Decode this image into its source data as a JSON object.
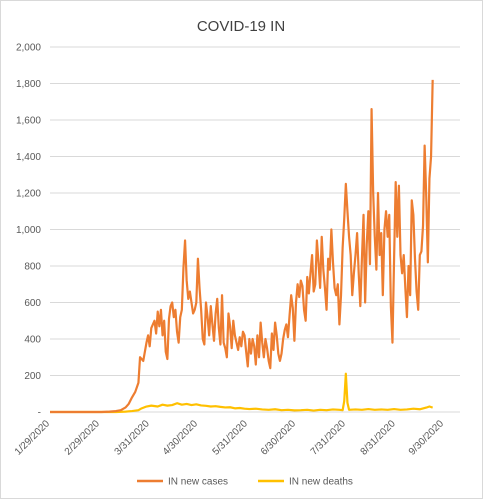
{
  "chart_data": {
    "type": "line",
    "title": "COVID-19 IN",
    "xlabel": "",
    "ylabel": "",
    "ylim": [
      0,
      2000
    ],
    "y_ticks": [
      0,
      200,
      400,
      600,
      800,
      1000,
      1200,
      1400,
      1600,
      1800,
      2000
    ],
    "y_tick_labels": [
      "-",
      "200",
      "400",
      "600",
      "800",
      "1,000",
      "1,200",
      "1,400",
      "1,600",
      "1,800",
      "2,000"
    ],
    "x_range": [
      "2020-01-29",
      "2020-10-10"
    ],
    "x_tick_labels": [
      "1/29/2020",
      "2/29/2020",
      "3/31/2020",
      "4/30/2020",
      "5/31/2020",
      "6/30/2020",
      "7/31/2020",
      "8/31/2020",
      "9/30/2020"
    ],
    "x_tick_dates": [
      "2020-01-29",
      "2020-02-29",
      "2020-03-31",
      "2020-04-30",
      "2020-05-31",
      "2020-06-30",
      "2020-07-31",
      "2020-08-31",
      "2020-09-30"
    ],
    "grid": "horizontal",
    "legend_position": "bottom",
    "series": [
      {
        "name": "IN new cases",
        "color": "#ED7D31",
        "points": [
          [
            "2020-01-29",
            0
          ],
          [
            "2020-02-15",
            0
          ],
          [
            "2020-03-01",
            0
          ],
          [
            "2020-03-06",
            2
          ],
          [
            "2020-03-10",
            5
          ],
          [
            "2020-03-13",
            10
          ],
          [
            "2020-03-16",
            25
          ],
          [
            "2020-03-18",
            45
          ],
          [
            "2020-03-20",
            80
          ],
          [
            "2020-03-22",
            110
          ],
          [
            "2020-03-24",
            160
          ],
          [
            "2020-03-25",
            300
          ],
          [
            "2020-03-27",
            280
          ],
          [
            "2020-03-29",
            380
          ],
          [
            "2020-03-30",
            420
          ],
          [
            "2020-03-31",
            360
          ],
          [
            "2020-04-01",
            460
          ],
          [
            "2020-04-03",
            500
          ],
          [
            "2020-04-04",
            430
          ],
          [
            "2020-04-05",
            550
          ],
          [
            "2020-04-06",
            470
          ],
          [
            "2020-04-07",
            560
          ],
          [
            "2020-04-08",
            420
          ],
          [
            "2020-04-09",
            500
          ],
          [
            "2020-04-10",
            330
          ],
          [
            "2020-04-11",
            290
          ],
          [
            "2020-04-12",
            510
          ],
          [
            "2020-04-13",
            580
          ],
          [
            "2020-04-14",
            600
          ],
          [
            "2020-04-15",
            520
          ],
          [
            "2020-04-16",
            560
          ],
          [
            "2020-04-17",
            440
          ],
          [
            "2020-04-18",
            380
          ],
          [
            "2020-04-19",
            520
          ],
          [
            "2020-04-20",
            560
          ],
          [
            "2020-04-21",
            790
          ],
          [
            "2020-04-22",
            940
          ],
          [
            "2020-04-23",
            720
          ],
          [
            "2020-04-24",
            620
          ],
          [
            "2020-04-25",
            660
          ],
          [
            "2020-04-26",
            600
          ],
          [
            "2020-04-27",
            540
          ],
          [
            "2020-04-28",
            560
          ],
          [
            "2020-04-29",
            600
          ],
          [
            "2020-04-30",
            840
          ],
          [
            "2020-05-01",
            680
          ],
          [
            "2020-05-02",
            560
          ],
          [
            "2020-05-03",
            400
          ],
          [
            "2020-05-04",
            370
          ],
          [
            "2020-05-05",
            600
          ],
          [
            "2020-05-06",
            520
          ],
          [
            "2020-05-07",
            420
          ],
          [
            "2020-05-08",
            580
          ],
          [
            "2020-05-09",
            480
          ],
          [
            "2020-05-10",
            390
          ],
          [
            "2020-05-11",
            540
          ],
          [
            "2020-05-12",
            620
          ],
          [
            "2020-05-13",
            460
          ],
          [
            "2020-05-14",
            370
          ],
          [
            "2020-05-15",
            640
          ],
          [
            "2020-05-16",
            380
          ],
          [
            "2020-05-17",
            350
          ],
          [
            "2020-05-18",
            300
          ],
          [
            "2020-05-19",
            540
          ],
          [
            "2020-05-20",
            470
          ],
          [
            "2020-05-21",
            350
          ],
          [
            "2020-05-22",
            500
          ],
          [
            "2020-05-23",
            420
          ],
          [
            "2020-05-24",
            380
          ],
          [
            "2020-05-25",
            340
          ],
          [
            "2020-05-26",
            410
          ],
          [
            "2020-05-27",
            360
          ],
          [
            "2020-05-28",
            440
          ],
          [
            "2020-05-29",
            420
          ],
          [
            "2020-05-30",
            330
          ],
          [
            "2020-05-31",
            250
          ],
          [
            "2020-06-01",
            400
          ],
          [
            "2020-06-02",
            320
          ],
          [
            "2020-06-03",
            400
          ],
          [
            "2020-06-04",
            360
          ],
          [
            "2020-06-05",
            260
          ],
          [
            "2020-06-06",
            420
          ],
          [
            "2020-06-07",
            300
          ],
          [
            "2020-06-08",
            490
          ],
          [
            "2020-06-09",
            380
          ],
          [
            "2020-06-10",
            300
          ],
          [
            "2020-06-11",
            400
          ],
          [
            "2020-06-12",
            350
          ],
          [
            "2020-06-13",
            280
          ],
          [
            "2020-06-14",
            240
          ],
          [
            "2020-06-15",
            430
          ],
          [
            "2020-06-16",
            340
          ],
          [
            "2020-06-17",
            490
          ],
          [
            "2020-06-18",
            420
          ],
          [
            "2020-06-19",
            320
          ],
          [
            "2020-06-20",
            280
          ],
          [
            "2020-06-21",
            320
          ],
          [
            "2020-06-22",
            400
          ],
          [
            "2020-06-23",
            450
          ],
          [
            "2020-06-24",
            480
          ],
          [
            "2020-06-25",
            410
          ],
          [
            "2020-06-26",
            530
          ],
          [
            "2020-06-27",
            640
          ],
          [
            "2020-06-28",
            570
          ],
          [
            "2020-06-29",
            390
          ],
          [
            "2020-06-30",
            600
          ],
          [
            "2020-07-01",
            700
          ],
          [
            "2020-07-02",
            630
          ],
          [
            "2020-07-03",
            720
          ],
          [
            "2020-07-04",
            690
          ],
          [
            "2020-07-05",
            560
          ],
          [
            "2020-07-06",
            500
          ],
          [
            "2020-07-07",
            740
          ],
          [
            "2020-07-08",
            650
          ],
          [
            "2020-07-09",
            760
          ],
          [
            "2020-07-10",
            860
          ],
          [
            "2020-07-11",
            660
          ],
          [
            "2020-07-12",
            700
          ],
          [
            "2020-07-13",
            940
          ],
          [
            "2020-07-14",
            820
          ],
          [
            "2020-07-15",
            680
          ],
          [
            "2020-07-16",
            960
          ],
          [
            "2020-07-17",
            780
          ],
          [
            "2020-07-18",
            680
          ],
          [
            "2020-07-19",
            560
          ],
          [
            "2020-07-20",
            840
          ],
          [
            "2020-07-21",
            780
          ],
          [
            "2020-07-22",
            1000
          ],
          [
            "2020-07-23",
            820
          ],
          [
            "2020-07-24",
            680
          ],
          [
            "2020-07-25",
            640
          ],
          [
            "2020-07-26",
            700
          ],
          [
            "2020-07-27",
            480
          ],
          [
            "2020-07-28",
            640
          ],
          [
            "2020-07-29",
            900
          ],
          [
            "2020-07-30",
            1060
          ],
          [
            "2020-07-31",
            1250
          ],
          [
            "2020-08-01",
            1100
          ],
          [
            "2020-08-02",
            960
          ],
          [
            "2020-08-03",
            860
          ],
          [
            "2020-08-04",
            640
          ],
          [
            "2020-08-05",
            760
          ],
          [
            "2020-08-06",
            860
          ],
          [
            "2020-08-07",
            980
          ],
          [
            "2020-08-08",
            760
          ],
          [
            "2020-08-09",
            580
          ],
          [
            "2020-08-10",
            840
          ],
          [
            "2020-08-11",
            1080
          ],
          [
            "2020-08-12",
            600
          ],
          [
            "2020-08-13",
            920
          ],
          [
            "2020-08-14",
            1100
          ],
          [
            "2020-08-15",
            810
          ],
          [
            "2020-08-16",
            1660
          ],
          [
            "2020-08-17",
            1200
          ],
          [
            "2020-08-18",
            960
          ],
          [
            "2020-08-19",
            780
          ],
          [
            "2020-08-20",
            1200
          ],
          [
            "2020-08-21",
            860
          ],
          [
            "2020-08-22",
            980
          ],
          [
            "2020-08-23",
            640
          ],
          [
            "2020-08-24",
            1000
          ],
          [
            "2020-08-25",
            1100
          ],
          [
            "2020-08-26",
            960
          ],
          [
            "2020-08-27",
            1080
          ],
          [
            "2020-08-28",
            580
          ],
          [
            "2020-08-29",
            380
          ],
          [
            "2020-08-30",
            840
          ],
          [
            "2020-08-31",
            1260
          ],
          [
            "2020-09-01",
            960
          ],
          [
            "2020-09-02",
            1240
          ],
          [
            "2020-09-03",
            860
          ],
          [
            "2020-09-04",
            760
          ],
          [
            "2020-09-05",
            860
          ],
          [
            "2020-09-06",
            680
          ],
          [
            "2020-09-07",
            520
          ],
          [
            "2020-09-08",
            800
          ],
          [
            "2020-09-09",
            640
          ],
          [
            "2020-09-10",
            1160
          ],
          [
            "2020-09-11",
            1080
          ],
          [
            "2020-09-12",
            840
          ],
          [
            "2020-09-13",
            660
          ],
          [
            "2020-09-14",
            560
          ],
          [
            "2020-09-15",
            860
          ],
          [
            "2020-09-16",
            880
          ],
          [
            "2020-09-17",
            1020
          ],
          [
            "2020-09-18",
            1460
          ],
          [
            "2020-09-19",
            1180
          ],
          [
            "2020-09-20",
            820
          ],
          [
            "2020-09-21",
            1280
          ],
          [
            "2020-09-22",
            1400
          ],
          [
            "2020-09-23",
            1820
          ]
        ]
      },
      {
        "name": "IN new deaths",
        "color": "#FFC000",
        "points": [
          [
            "2020-01-29",
            0
          ],
          [
            "2020-03-10",
            0
          ],
          [
            "2020-03-16",
            2
          ],
          [
            "2020-03-20",
            5
          ],
          [
            "2020-03-24",
            10
          ],
          [
            "2020-03-26",
            20
          ],
          [
            "2020-03-29",
            30
          ],
          [
            "2020-04-01",
            35
          ],
          [
            "2020-04-05",
            30
          ],
          [
            "2020-04-08",
            40
          ],
          [
            "2020-04-11",
            35
          ],
          [
            "2020-04-14",
            38
          ],
          [
            "2020-04-17",
            48
          ],
          [
            "2020-04-20",
            40
          ],
          [
            "2020-04-23",
            44
          ],
          [
            "2020-04-26",
            38
          ],
          [
            "2020-04-29",
            42
          ],
          [
            "2020-05-02",
            36
          ],
          [
            "2020-05-05",
            34
          ],
          [
            "2020-05-08",
            30
          ],
          [
            "2020-05-11",
            32
          ],
          [
            "2020-05-14",
            28
          ],
          [
            "2020-05-17",
            25
          ],
          [
            "2020-05-20",
            26
          ],
          [
            "2020-05-23",
            20
          ],
          [
            "2020-05-26",
            22
          ],
          [
            "2020-05-29",
            18
          ],
          [
            "2020-06-01",
            16
          ],
          [
            "2020-06-05",
            18
          ],
          [
            "2020-06-09",
            14
          ],
          [
            "2020-06-13",
            12
          ],
          [
            "2020-06-17",
            15
          ],
          [
            "2020-06-21",
            10
          ],
          [
            "2020-06-25",
            12
          ],
          [
            "2020-06-29",
            9
          ],
          [
            "2020-07-03",
            10
          ],
          [
            "2020-07-07",
            12
          ],
          [
            "2020-07-11",
            8
          ],
          [
            "2020-07-15",
            12
          ],
          [
            "2020-07-19",
            10
          ],
          [
            "2020-07-23",
            14
          ],
          [
            "2020-07-27",
            12
          ],
          [
            "2020-07-29",
            10
          ],
          [
            "2020-07-30",
            60
          ],
          [
            "2020-07-31",
            210
          ],
          [
            "2020-08-01",
            50
          ],
          [
            "2020-08-02",
            12
          ],
          [
            "2020-08-06",
            14
          ],
          [
            "2020-08-10",
            12
          ],
          [
            "2020-08-14",
            16
          ],
          [
            "2020-08-18",
            12
          ],
          [
            "2020-08-22",
            14
          ],
          [
            "2020-08-26",
            12
          ],
          [
            "2020-08-30",
            16
          ],
          [
            "2020-09-03",
            12
          ],
          [
            "2020-09-07",
            14
          ],
          [
            "2020-09-11",
            18
          ],
          [
            "2020-09-15",
            15
          ],
          [
            "2020-09-19",
            24
          ],
          [
            "2020-09-21",
            30
          ],
          [
            "2020-09-23",
            24
          ]
        ]
      }
    ]
  }
}
